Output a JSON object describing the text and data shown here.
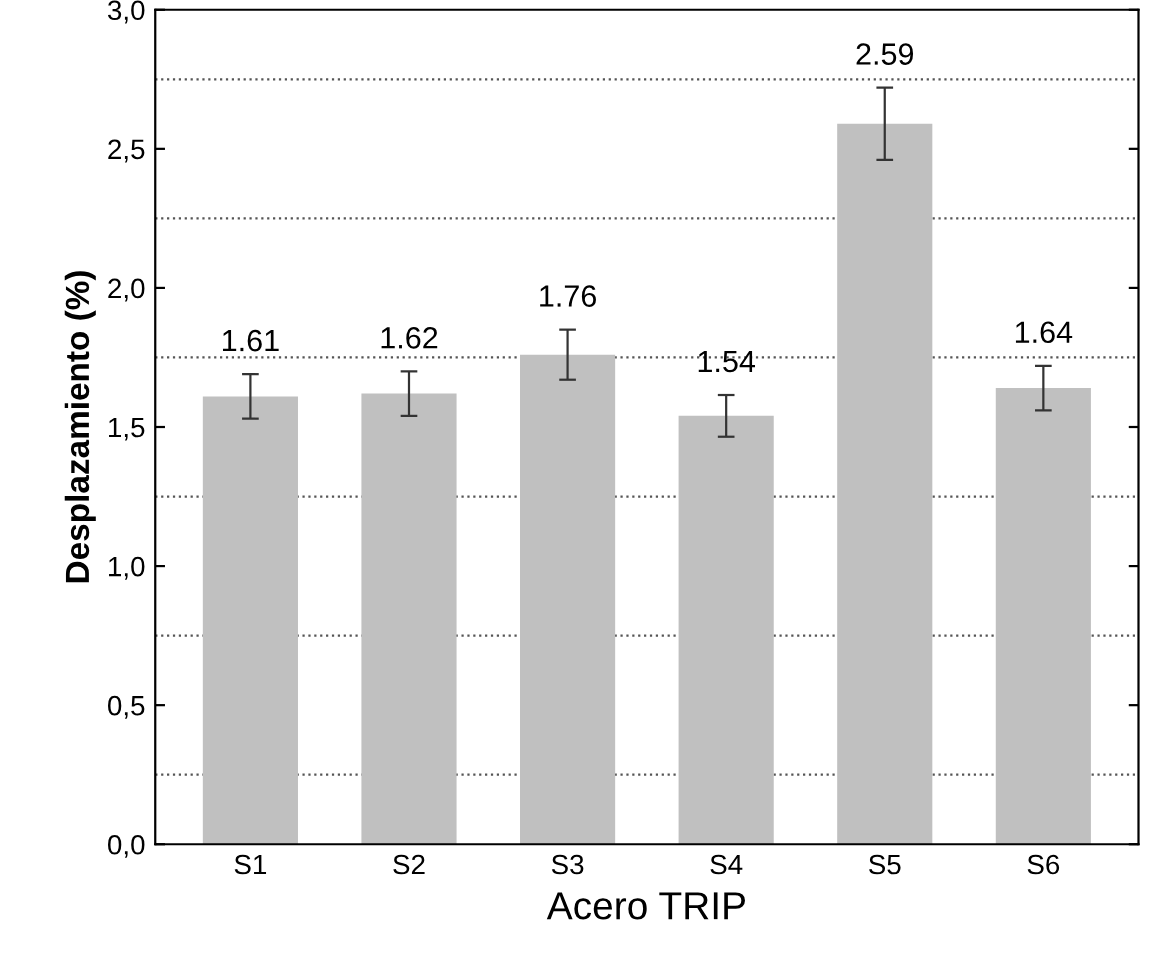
{
  "chart_data": {
    "type": "bar",
    "xlabel": "Acero TRIP",
    "ylabel": "Desplazamiento (%)",
    "categories": [
      "S1",
      "S2",
      "S3",
      "S4",
      "S5",
      "S6"
    ],
    "values": [
      1.61,
      1.62,
      1.76,
      1.54,
      2.59,
      1.64
    ],
    "errors": [
      0.08,
      0.08,
      0.09,
      0.075,
      0.13,
      0.08
    ],
    "color": "#c0c0c0",
    "data_labels": true,
    "ylim": [
      0,
      3
    ],
    "yticks": [
      {
        "value": 0,
        "label": "0,0"
      },
      {
        "value": 0.5,
        "label": "0,5"
      },
      {
        "value": 1,
        "label": "1,0"
      },
      {
        "value": 1.5,
        "label": "1,5"
      },
      {
        "value": 2,
        "label": "2,0"
      },
      {
        "value": 2.5,
        "label": "2,5"
      },
      {
        "value": 3,
        "label": "3,0"
      }
    ],
    "ref_lines": [
      {
        "axis": "y",
        "value": 0.25,
        "line_style": "dotted"
      },
      {
        "axis": "y",
        "value": 0.75,
        "line_style": "dotted"
      },
      {
        "axis": "y",
        "value": 1.25,
        "line_style": "dotted"
      },
      {
        "axis": "y",
        "value": 1.75,
        "line_style": "dotted"
      },
      {
        "axis": "y",
        "value": 2.25,
        "line_style": "dotted"
      },
      {
        "axis": "y",
        "value": 2.75,
        "line_style": "dotted"
      }
    ]
  }
}
